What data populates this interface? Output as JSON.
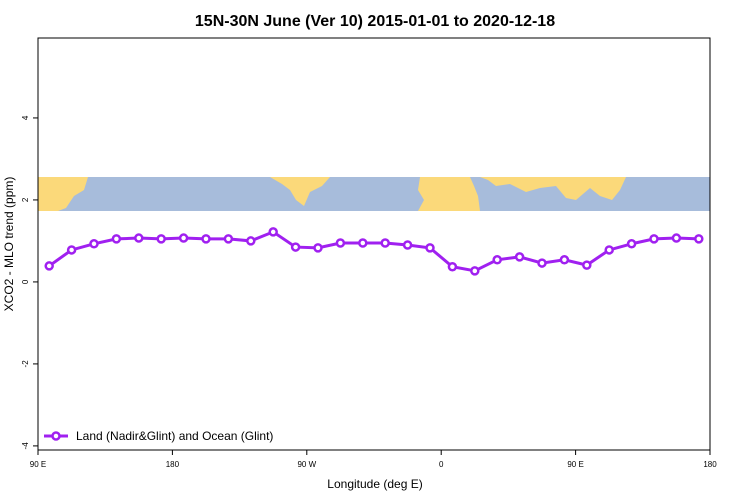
{
  "chart_data": {
    "type": "line",
    "title": "15N-30N June (Ver 10)   2015-01-01 to 2020-12-18",
    "x_label": "Longitude (deg E)",
    "y_label": "XCO2 - MLO trend (ppm)",
    "x": [
      97.5,
      112.5,
      127.5,
      142.5,
      157.5,
      172.5,
      187.5,
      202.5,
      217.5,
      232.5,
      247.5,
      262.5,
      277.5,
      292.5,
      307.5,
      322.5,
      337.5,
      352.5,
      367.5,
      382.5,
      397.5,
      412.5,
      427.5,
      442.5,
      457.5,
      472.5,
      487.5,
      502.5,
      517.5,
      532.5
    ],
    "series": [
      {
        "name": "Land (Nadir&Glint) and Ocean (Glint)",
        "color": "#a020f0",
        "values": [
          0.39,
          0.78,
          0.93,
          1.05,
          1.07,
          1.05,
          1.07,
          1.05,
          1.05,
          1.0,
          1.22,
          0.85,
          0.83,
          0.95,
          0.95,
          0.95,
          0.9,
          0.83,
          0.37,
          0.27,
          0.54,
          0.61,
          0.46,
          0.54,
          0.41,
          0.78,
          0.93,
          1.05,
          1.07,
          1.05
        ]
      }
    ],
    "xlim": [
      90,
      540
    ],
    "ylim": [
      -4.1,
      5.95
    ],
    "xticks": [
      {
        "value": 90,
        "label": "90 E"
      },
      {
        "value": 180,
        "label": "180"
      },
      {
        "value": 270,
        "label": "90 W"
      },
      {
        "value": 360,
        "label": "0"
      },
      {
        "value": 450,
        "label": "90 E"
      },
      {
        "value": 540,
        "label": "180"
      }
    ],
    "yticks": [
      -4,
      -2,
      0,
      2,
      4
    ],
    "legend": "bottom-left"
  }
}
